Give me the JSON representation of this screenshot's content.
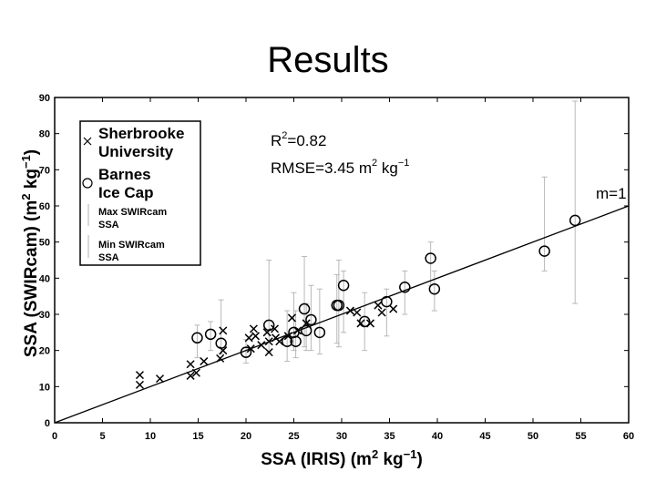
{
  "slide": {
    "title": "Results"
  },
  "chart_data": {
    "type": "scatter",
    "xlabel": "SSA (IRIS) (m2 kg−1)",
    "ylabel": "SSA (SWIRcam) (m2 kg−1)",
    "xlim": [
      0,
      60
    ],
    "ylim": [
      0,
      90
    ],
    "xticks": [
      0,
      5,
      10,
      15,
      20,
      25,
      30,
      35,
      40,
      45,
      50,
      55,
      60
    ],
    "yticks": [
      0,
      10,
      20,
      30,
      40,
      50,
      60,
      70,
      80,
      90
    ],
    "grid": false,
    "legend": {
      "placement": "top-left",
      "entries": [
        {
          "marker": "x",
          "label_lines": [
            "Sherbrooke",
            "University"
          ]
        },
        {
          "marker": "circle",
          "label_lines": [
            "Barnes",
            "Ice Cap"
          ]
        },
        {
          "marker": "bar-max",
          "label_lines": [
            "Max SWIRcam",
            "SSA"
          ]
        },
        {
          "marker": "bar-min",
          "label_lines": [
            "Min SWIRcam",
            "SSA"
          ]
        }
      ]
    },
    "annotations": {
      "r2_prefix": "R",
      "r2_sup": "2",
      "r2_value": "=0.82",
      "rmse_prefix": "RMSE=3.45 m",
      "rmse_sup1": "2",
      "rmse_unit": " kg",
      "rmse_sup2": "−1",
      "line_label": "m=1"
    },
    "reference_line": {
      "slope": 1,
      "x": [
        0,
        60
      ],
      "y": [
        0,
        60
      ]
    },
    "series": [
      {
        "name": "Sherbrooke University",
        "marker": "x",
        "points": [
          {
            "x": 8.9,
            "y": 10.5
          },
          {
            "x": 8.9,
            "y": 13.2
          },
          {
            "x": 11.0,
            "y": 12.2
          },
          {
            "x": 14.2,
            "y": 13.0
          },
          {
            "x": 14.2,
            "y": 16.2
          },
          {
            "x": 14.8,
            "y": 13.8
          },
          {
            "x": 15.6,
            "y": 17.0
          },
          {
            "x": 17.3,
            "y": 17.8
          },
          {
            "x": 17.6,
            "y": 20.0
          },
          {
            "x": 17.6,
            "y": 25.5
          },
          {
            "x": 20.3,
            "y": 23.5
          },
          {
            "x": 20.5,
            "y": 20.5
          },
          {
            "x": 20.8,
            "y": 26.0
          },
          {
            "x": 21.0,
            "y": 24.0
          },
          {
            "x": 21.6,
            "y": 21.5
          },
          {
            "x": 22.2,
            "y": 25.0
          },
          {
            "x": 22.4,
            "y": 19.5
          },
          {
            "x": 22.4,
            "y": 22.5
          },
          {
            "x": 23.0,
            "y": 26.0
          },
          {
            "x": 23.1,
            "y": 23.5
          },
          {
            "x": 23.5,
            "y": 22.5
          },
          {
            "x": 24.4,
            "y": 24.0
          },
          {
            "x": 24.8,
            "y": 29.0
          },
          {
            "x": 25.4,
            "y": 25.5
          },
          {
            "x": 26.3,
            "y": 27.5
          },
          {
            "x": 30.9,
            "y": 31.0
          },
          {
            "x": 31.6,
            "y": 30.5
          },
          {
            "x": 32.0,
            "y": 27.5
          },
          {
            "x": 33.0,
            "y": 27.5
          },
          {
            "x": 33.8,
            "y": 32.5
          },
          {
            "x": 34.2,
            "y": 30.5
          },
          {
            "x": 35.4,
            "y": 31.5
          }
        ]
      },
      {
        "name": "Barnes Ice Cap",
        "marker": "circle",
        "points": [
          {
            "x": 14.9,
            "y": 23.5,
            "ymin": 18.0,
            "ymax": 27.0
          },
          {
            "x": 16.3,
            "y": 24.5,
            "ymin": 20.0,
            "ymax": 28.0
          },
          {
            "x": 17.4,
            "y": 22.0,
            "ymin": 19.0,
            "ymax": 34.0
          },
          {
            "x": 20.0,
            "y": 19.5,
            "ymin": 16.5,
            "ymax": 23.0
          },
          {
            "x": 22.4,
            "y": 27.0,
            "ymin": 19.5,
            "ymax": 45.0
          },
          {
            "x": 24.3,
            "y": 22.5,
            "ymin": 17.0,
            "ymax": 31.0
          },
          {
            "x": 25.0,
            "y": 25.0,
            "ymin": 20.0,
            "ymax": 36.0
          },
          {
            "x": 25.2,
            "y": 22.5,
            "ymin": 18.0,
            "ymax": 31.0
          },
          {
            "x": 26.1,
            "y": 31.5,
            "ymin": 21.0,
            "ymax": 46.0
          },
          {
            "x": 26.3,
            "y": 25.5,
            "ymin": 20.0,
            "ymax": 33.0
          },
          {
            "x": 26.8,
            "y": 28.5,
            "ymin": 20.0,
            "ymax": 38.0
          },
          {
            "x": 27.7,
            "y": 25.0,
            "ymin": 19.0,
            "ymax": 37.0
          },
          {
            "x": 29.5,
            "y": 32.5,
            "ymin": 22.0,
            "ymax": 41.0
          },
          {
            "x": 29.7,
            "y": 32.5,
            "ymin": 21.0,
            "ymax": 45.0
          },
          {
            "x": 30.2,
            "y": 38.0,
            "ymin": 25.0,
            "ymax": 42.0
          },
          {
            "x": 32.4,
            "y": 28.0,
            "ymin": 20.0,
            "ymax": 36.0
          },
          {
            "x": 34.7,
            "y": 33.5,
            "ymin": 24.0,
            "ymax": 37.0
          },
          {
            "x": 36.6,
            "y": 37.5,
            "ymin": 30.0,
            "ymax": 42.0
          },
          {
            "x": 39.3,
            "y": 45.5,
            "ymin": 38.0,
            "ymax": 50.0
          },
          {
            "x": 39.7,
            "y": 37.0,
            "ymin": 31.0,
            "ymax": 42.0
          },
          {
            "x": 51.2,
            "y": 47.5,
            "ymin": 42.0,
            "ymax": 68.0
          },
          {
            "x": 54.4,
            "y": 56.0,
            "ymin": 33.0,
            "ymax": 89.0
          }
        ]
      }
    ]
  }
}
